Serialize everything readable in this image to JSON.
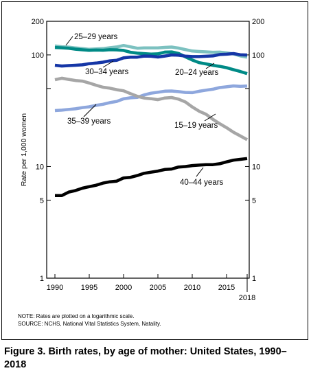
{
  "chart_data": {
    "type": "line",
    "title": "",
    "xlabel": "",
    "ylabel": "Rate per 1,000 women",
    "yscale": "log",
    "ylim": [
      1,
      200
    ],
    "xlim": [
      1990,
      2018
    ],
    "x_ticks": [
      1990,
      1995,
      2000,
      2005,
      2010,
      2015
    ],
    "x_end_tick": "2018",
    "y_ticks": [
      1,
      5,
      10,
      50,
      100,
      200
    ],
    "y_tick_labels": [
      "1",
      "5",
      "10",
      "",
      "100",
      "200"
    ],
    "grid": false,
    "x": [
      1990,
      1991,
      1992,
      1993,
      1994,
      1995,
      1996,
      1997,
      1998,
      1999,
      2000,
      2001,
      2002,
      2003,
      2004,
      2005,
      2006,
      2007,
      2008,
      2009,
      2010,
      2011,
      2012,
      2013,
      2014,
      2015,
      2016,
      2017,
      2018
    ],
    "series": [
      {
        "name": "25–29 years",
        "color": "#7cc1c0",
        "values": [
          120.2,
          118.2,
          117.4,
          115.5,
          113.9,
          112.2,
          113.1,
          113.8,
          115.9,
          117.8,
          121.4,
          118.1,
          114.7,
          115.6,
          115.5,
          115.5,
          116.7,
          117.5,
          115.1,
          111.5,
          108.3,
          107.2,
          106.5,
          105.5,
          105.8,
          104.3,
          102.1,
          98.0,
          95.3
        ]
      },
      {
        "name": "20–24 years",
        "color": "#008a86",
        "values": [
          116.5,
          115.7,
          114.6,
          112.6,
          111.1,
          109.8,
          110.4,
          110.1,
          111.2,
          111.0,
          109.7,
          105.6,
          103.6,
          102.6,
          101.7,
          102.2,
          105.9,
          106.3,
          103.0,
          96.2,
          90.0,
          85.3,
          83.1,
          80.7,
          79.0,
          76.8,
          73.8,
          71.0,
          68.0
        ]
      },
      {
        "name": "30–34 years",
        "color": "#1536a6",
        "values": [
          80.8,
          79.5,
          80.2,
          80.8,
          81.5,
          83.5,
          84.5,
          86.1,
          88.5,
          89.6,
          94.1,
          95.3,
          95.5,
          97.7,
          97.3,
          95.8,
          97.7,
          99.9,
          99.3,
          97.5,
          96.5,
          96.5,
          97.3,
          98.0,
          100.8,
          101.5,
          102.7,
          100.3,
          99.7
        ]
      },
      {
        "name": "35–39 years",
        "color": "#8ea7dd",
        "values": [
          31.7,
          32.0,
          32.5,
          32.9,
          33.7,
          34.3,
          35.3,
          36.1,
          37.4,
          38.3,
          40.4,
          41.3,
          41.6,
          43.8,
          45.4,
          46.3,
          47.3,
          47.5,
          46.9,
          46.1,
          45.9,
          47.2,
          48.3,
          49.3,
          51.0,
          51.8,
          52.7,
          52.3,
          52.6
        ]
      },
      {
        "name": "15–19 years",
        "color": "#a6a6a6",
        "values": [
          59.9,
          61.8,
          60.3,
          59.0,
          58.2,
          56.0,
          53.5,
          51.3,
          50.3,
          48.8,
          47.7,
          45.0,
          42.6,
          41.1,
          40.5,
          39.7,
          41.1,
          41.5,
          40.2,
          37.9,
          34.2,
          31.3,
          29.4,
          26.5,
          24.2,
          22.3,
          20.3,
          18.8,
          17.4
        ]
      },
      {
        "name": "40–44 years",
        "color": "#000000",
        "values": [
          5.5,
          5.5,
          5.9,
          6.1,
          6.4,
          6.6,
          6.8,
          7.1,
          7.3,
          7.4,
          7.9,
          8.0,
          8.3,
          8.7,
          8.9,
          9.1,
          9.4,
          9.5,
          9.9,
          10.0,
          10.2,
          10.3,
          10.4,
          10.4,
          10.6,
          11.0,
          11.4,
          11.6,
          11.8
        ]
      }
    ],
    "label_positions_note": "series labels drawn next to lines"
  },
  "series_labels": {
    "a25_29": "25–29 years",
    "a20_24": "20–24 years",
    "a30_34": "30–34 years",
    "a35_39": "35–39 years",
    "a15_19": "15–19 years",
    "a40_44": "40–44 years"
  },
  "notes": {
    "note": "NOTE: Rates are plotted on a logarithmic scale.",
    "source": "SOURCE: NCHS, National Vital Statistics System, Natality."
  },
  "caption": "Figure 3. Birth rates, by age of mother: United States, 1990–2018"
}
